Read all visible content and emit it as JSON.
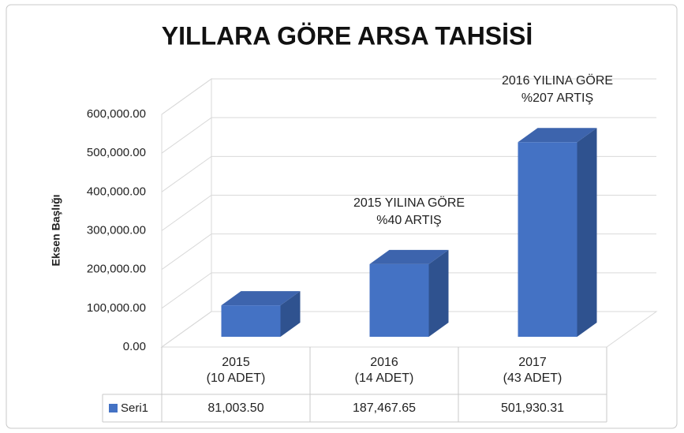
{
  "chart_data": {
    "type": "bar3d",
    "title": "YILLARA GÖRE ARSA TAHSİSİ",
    "y_axis_label": "Eksen Başlığı",
    "categories": [
      "2015\n(10 ADET)",
      "2016\n(14 ADET)",
      "2017\n(43 ADET)"
    ],
    "series": [
      {
        "name": "Seri1",
        "color": "#4472c4",
        "values": [
          81003.5,
          187467.65,
          501930.31
        ],
        "value_labels": [
          "81,003.50",
          "187,467.65",
          "501,930.31"
        ]
      }
    ],
    "annotations": [
      "2015 YILINA GÖRE\n%40 ARTIŞ",
      "2016 YILINA GÖRE\n%207 ARTIŞ"
    ],
    "ylim": [
      0,
      600000
    ],
    "yticks": [
      {
        "value": 0,
        "label": "0.00"
      },
      {
        "value": 100000,
        "label": "100,000.00"
      },
      {
        "value": 200000,
        "label": "200,000.00"
      },
      {
        "value": 300000,
        "label": "300,000.00"
      },
      {
        "value": 400000,
        "label": "400,000.00"
      },
      {
        "value": 500000,
        "label": "500,000.00"
      },
      {
        "value": 600000,
        "label": "600,000.00"
      }
    ],
    "grid": true,
    "legend": "data-table"
  }
}
